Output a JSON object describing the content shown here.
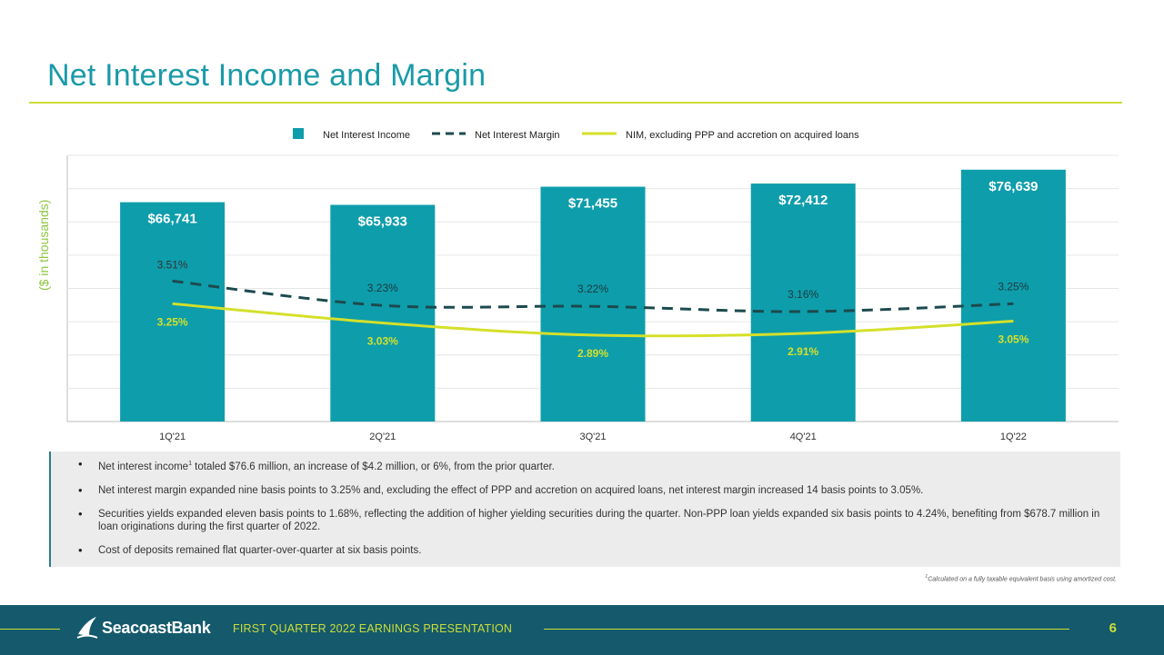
{
  "page": {
    "title": "Net Interest Income and Margin",
    "y_axis_label": "($ in thousands)",
    "bullets": [
      {
        "pre": "Net interest income",
        "sup": "1",
        "post": " totaled $76.6 million, an increase of $4.2 million, or 6%, from the prior quarter."
      },
      {
        "pre": "Net interest margin expanded nine basis points to 3.25% and, excluding the effect of PPP and accretion on acquired loans, net interest margin increased 14 basis points to 3.05%.",
        "sup": "",
        "post": ""
      },
      {
        "pre": "Securities yields expanded eleven basis points to 1.68%, reflecting the addition of higher yielding securities during the quarter. Non-PPP loan yields expanded six basis points to 4.24%, benefiting from $678.7 million in loan originations during the first quarter of 2022.",
        "sup": "",
        "post": ""
      },
      {
        "pre": "Cost of deposits remained flat quarter-over-quarter at six basis points.",
        "sup": "",
        "post": ""
      }
    ],
    "footnote_sup": "1",
    "footnote": "Calculated on a fully taxable equivalent basis using amortized cost.",
    "footer": {
      "logo_text": "SeacoastBank",
      "logo_mark": "·",
      "presentation": "FIRST QUARTER 2022 EARNINGS PRESENTATION",
      "page_number": "6"
    }
  },
  "colors": {
    "bar": "#0e9dab",
    "nim_line": "#1c4a4e",
    "nim_ex_line": "#d4e02a",
    "title": "#1a9aa8",
    "footer_bg": "#145a6c",
    "accent": "#cddc39"
  },
  "chart_data": {
    "type": "bar",
    "categories": [
      "1Q'21",
      "2Q'21",
      "3Q'21",
      "4Q'21",
      "1Q'22"
    ],
    "ylabel": "($ in thousands)",
    "grid": true,
    "legend_position": "top",
    "series": [
      {
        "name": "Net Interest Income",
        "type": "bar",
        "axis": "left",
        "values": [
          66741,
          65933,
          71455,
          72412,
          76639
        ],
        "labels": [
          "$66,741",
          "$65,933",
          "$71,455",
          "$72,412",
          "$76,639"
        ]
      },
      {
        "name": "Net Interest Margin",
        "type": "line",
        "style": "dashed",
        "axis": "right",
        "values": [
          3.51,
          3.23,
          3.22,
          3.16,
          3.25
        ],
        "labels": [
          "3.51%",
          "3.23%",
          "3.22%",
          "3.16%",
          "3.25%"
        ]
      },
      {
        "name": "NIM, excluding PPP and accretion on acquired loans",
        "type": "line",
        "style": "solid",
        "axis": "right",
        "values": [
          3.25,
          3.03,
          2.89,
          2.91,
          3.05
        ],
        "labels": [
          "3.25%",
          "3.03%",
          "2.89%",
          "2.91%",
          "3.05%"
        ]
      }
    ]
  }
}
